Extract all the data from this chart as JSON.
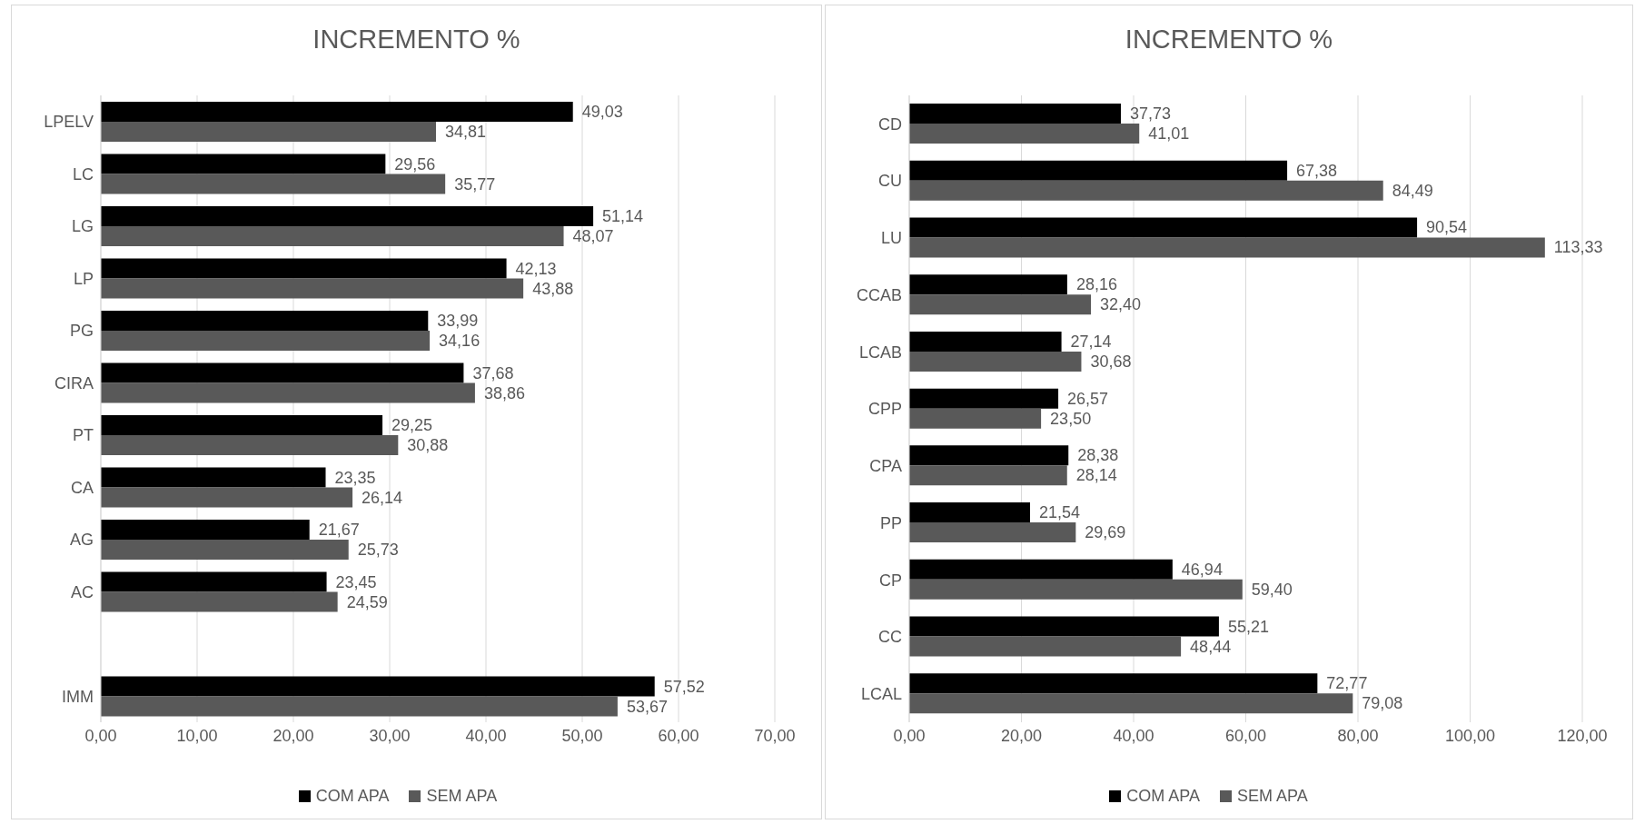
{
  "chart_data": [
    {
      "type": "bar",
      "orientation": "horizontal",
      "title": "INCREMENTO %",
      "categories": [
        "LPELV",
        "LC",
        "LG",
        "LP",
        "PG",
        "CIRA",
        "PT",
        "CA",
        "AG",
        "AC",
        null,
        "IMM"
      ],
      "series": [
        {
          "name": "COM APA",
          "color": "#000000",
          "values": [
            49.03,
            29.56,
            51.14,
            42.13,
            33.99,
            37.68,
            29.25,
            23.35,
            21.67,
            23.45,
            null,
            57.52
          ],
          "value_labels": [
            "49,03",
            "29,56",
            "51,14",
            "42,13",
            "33,99",
            "37,68",
            "29,25",
            "23,35",
            "21,67",
            "23,45",
            null,
            "57,52"
          ]
        },
        {
          "name": "SEM APA",
          "color": "#595959",
          "values": [
            34.81,
            35.77,
            48.07,
            43.88,
            34.16,
            38.86,
            30.88,
            26.14,
            25.73,
            24.59,
            null,
            53.67
          ],
          "value_labels": [
            "34,81",
            "35,77",
            "48,07",
            "43,88",
            "34,16",
            "38,86",
            "30,88",
            "26,14",
            "25,73",
            "24,59",
            null,
            "53,67"
          ]
        }
      ],
      "xlim": [
        0,
        70
      ],
      "xticks": [
        {
          "value": 0,
          "label": "0,00"
        },
        {
          "value": 10,
          "label": "10,00"
        },
        {
          "value": 20,
          "label": "20,00"
        },
        {
          "value": 30,
          "label": "30,00"
        },
        {
          "value": 40,
          "label": "40,00"
        },
        {
          "value": 50,
          "label": "50,00"
        },
        {
          "value": 60,
          "label": "60,00"
        },
        {
          "value": 70,
          "label": "70,00"
        }
      ],
      "grid": "x",
      "legend": "bottom"
    },
    {
      "type": "bar",
      "orientation": "horizontal",
      "title": "INCREMENTO %",
      "categories": [
        "CD",
        "CU",
        "LU",
        "CCAB",
        "LCAB",
        "CPP",
        "CPA",
        "PP",
        "CP",
        "CC",
        "LCAL"
      ],
      "series": [
        {
          "name": "COM APA",
          "color": "#000000",
          "values": [
            37.73,
            67.38,
            90.54,
            28.16,
            27.14,
            26.57,
            28.38,
            21.54,
            46.94,
            55.21,
            72.77
          ],
          "value_labels": [
            "37,73",
            "67,38",
            "90,54",
            "28,16",
            "27,14",
            "26,57",
            "28,38",
            "21,54",
            "46,94",
            "55,21",
            "72,77"
          ]
        },
        {
          "name": "SEM APA",
          "color": "#595959",
          "values": [
            41.01,
            84.49,
            113.33,
            32.4,
            30.68,
            23.5,
            28.14,
            29.69,
            59.4,
            48.44,
            79.08
          ],
          "value_labels": [
            "41,01",
            "84,49",
            "113,33",
            "32,40",
            "30,68",
            "23,50",
            "28,14",
            "29,69",
            "59,40",
            "48,44",
            "79,08"
          ]
        }
      ],
      "xlim": [
        0,
        120
      ],
      "xticks": [
        {
          "value": 0,
          "label": "0,00"
        },
        {
          "value": 20,
          "label": "20,00"
        },
        {
          "value": 40,
          "label": "40,00"
        },
        {
          "value": 60,
          "label": "60,00"
        },
        {
          "value": 80,
          "label": "80,00"
        },
        {
          "value": 100,
          "label": "100,00"
        },
        {
          "value": 120,
          "label": "120,00"
        }
      ],
      "grid": "x",
      "legend": "bottom"
    }
  ]
}
